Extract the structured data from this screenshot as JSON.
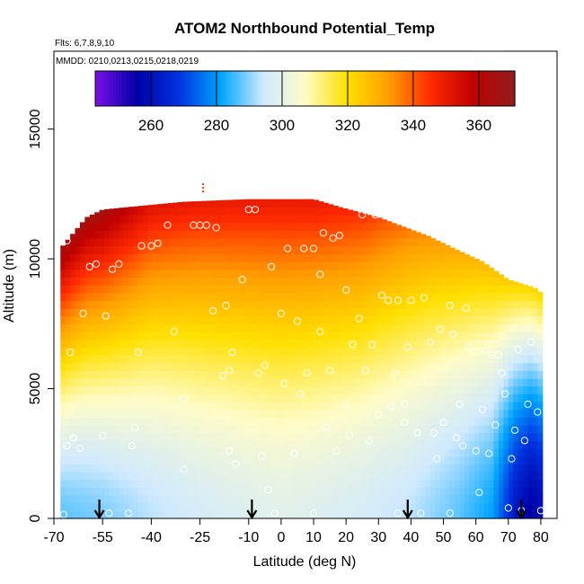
{
  "chart_data": {
    "type": "heatmap",
    "title": "ATOM2 Northbound Potential_Temp",
    "flights_label": "Flts: 6,7,8,9,10",
    "mmdd_label": "MMDD: 0210,0213,0215,0218,0219",
    "xlabel": "Latitude (deg N)",
    "ylabel": "Altitude (m)",
    "xlim": [
      -70,
      85
    ],
    "ylim": [
      0,
      18000
    ],
    "x_ticks": [
      -70,
      -55,
      -40,
      -25,
      -10,
      0,
      10,
      20,
      30,
      40,
      50,
      60,
      70,
      80
    ],
    "y_ticks": [
      0,
      5000,
      10000,
      15000
    ],
    "colorbar": {
      "min": 243,
      "max": 371,
      "ticks": [
        260,
        280,
        300,
        320,
        340,
        360
      ],
      "colors": [
        "#7b10e8",
        "#0000a8",
        "#0033e0",
        "#00a6ff",
        "#cfe9ff",
        "#fffcc8",
        "#ffe000",
        "#ff9d00",
        "#ff2a00",
        "#c00000",
        "#8f1f1f"
      ]
    },
    "field_extent": {
      "lat_range": [
        -68,
        80
      ],
      "top_altitude_by_lat": [
        [
          -68,
          10400
        ],
        [
          -60,
          11600
        ],
        [
          -55,
          11900
        ],
        [
          -30,
          12200
        ],
        [
          -10,
          12300
        ],
        [
          10,
          12300
        ],
        [
          18,
          12000
        ],
        [
          30,
          11600
        ],
        [
          45,
          10900
        ],
        [
          55,
          10300
        ],
        [
          62,
          9900
        ],
        [
          70,
          9200
        ],
        [
          78,
          8900
        ],
        [
          80,
          8700
        ]
      ]
    },
    "profiles": [
      {
        "lat": -68,
        "theta_surface": 287,
        "theta_top": 365
      },
      {
        "lat": -55,
        "theta_surface": 289,
        "theta_top": 365
      },
      {
        "lat": -40,
        "theta_surface": 293,
        "theta_top": 352
      },
      {
        "lat": -25,
        "theta_surface": 296,
        "theta_top": 350
      },
      {
        "lat": -10,
        "theta_surface": 298,
        "theta_top": 350
      },
      {
        "lat": 0,
        "theta_surface": 299,
        "theta_top": 350
      },
      {
        "lat": 10,
        "theta_surface": 298,
        "theta_top": 350
      },
      {
        "lat": 25,
        "theta_surface": 296,
        "theta_top": 345
      },
      {
        "lat": 40,
        "theta_surface": 293,
        "theta_top": 336
      },
      {
        "lat": 55,
        "theta_surface": 287,
        "theta_top": 330
      },
      {
        "lat": 65,
        "theta_surface": 281,
        "theta_top": 326
      },
      {
        "lat": 72,
        "theta_surface": 262,
        "theta_top": 323
      },
      {
        "lat": 77,
        "theta_surface": 255,
        "theta_top": 322
      },
      {
        "lat": 80,
        "theta_surface": 258,
        "theta_top": 322
      }
    ],
    "sample_points": [
      [
        -67,
        150
      ],
      [
        -66,
        2800
      ],
      [
        -64,
        3100
      ],
      [
        -62,
        2700
      ],
      [
        -61,
        7900
      ],
      [
        -59,
        9700
      ],
      [
        -57,
        9800
      ],
      [
        -66,
        10700
      ],
      [
        -65,
        6400
      ],
      [
        -55,
        3200
      ],
      [
        -54,
        7800
      ],
      [
        -53,
        200
      ],
      [
        -52,
        9600
      ],
      [
        -50,
        9800
      ],
      [
        -47,
        200
      ],
      [
        -46,
        2800
      ],
      [
        -45,
        3500
      ],
      [
        -44,
        6400
      ],
      [
        -43,
        10500
      ],
      [
        -40,
        10500
      ],
      [
        -38,
        10600
      ],
      [
        -35,
        11300
      ],
      [
        -33,
        7200
      ],
      [
        -30,
        4600
      ],
      [
        -30,
        1900
      ],
      [
        -27,
        11300
      ],
      [
        -25,
        11300
      ],
      [
        -23,
        11300
      ],
      [
        -21,
        8000
      ],
      [
        -20,
        11200
      ],
      [
        -18,
        5500
      ],
      [
        -17,
        8200
      ],
      [
        -16,
        5700
      ],
      [
        -16,
        2600
      ],
      [
        -15,
        6400
      ],
      [
        -14,
        2100
      ],
      [
        -12,
        9200
      ],
      [
        -10,
        11900
      ],
      [
        -8,
        11900
      ],
      [
        -7,
        5600
      ],
      [
        -6,
        2400
      ],
      [
        -5,
        5900
      ],
      [
        -4,
        1100
      ],
      [
        -3,
        9700
      ],
      [
        -2,
        200
      ],
      [
        0,
        7900
      ],
      [
        1,
        5200
      ],
      [
        2,
        10400
      ],
      [
        4,
        2500
      ],
      [
        5,
        7600
      ],
      [
        6,
        4800
      ],
      [
        7,
        10400
      ],
      [
        8,
        5600
      ],
      [
        10,
        10400
      ],
      [
        10,
        200
      ],
      [
        12,
        7200
      ],
      [
        12,
        9400
      ],
      [
        13,
        11000
      ],
      [
        14,
        3500
      ],
      [
        15,
        5700
      ],
      [
        16,
        10800
      ],
      [
        17,
        2600
      ],
      [
        18,
        10900
      ],
      [
        20,
        4400
      ],
      [
        20,
        8800
      ],
      [
        21,
        3200
      ],
      [
        22,
        6700
      ],
      [
        24,
        7700
      ],
      [
        25,
        11700
      ],
      [
        26,
        5700
      ],
      [
        27,
        3000
      ],
      [
        28,
        6700
      ],
      [
        29,
        11700
      ],
      [
        30,
        4000
      ],
      [
        31,
        8600
      ],
      [
        32,
        11700
      ],
      [
        33,
        8400
      ],
      [
        34,
        4300
      ],
      [
        35,
        5600
      ],
      [
        36,
        200
      ],
      [
        36,
        8400
      ],
      [
        38,
        3700
      ],
      [
        38,
        4400
      ],
      [
        39,
        6600
      ],
      [
        40,
        8400
      ],
      [
        42,
        3300
      ],
      [
        43,
        200
      ],
      [
        44,
        8500
      ],
      [
        46,
        6800
      ],
      [
        47,
        3300
      ],
      [
        48,
        2300
      ],
      [
        49,
        7300
      ],
      [
        50,
        3700
      ],
      [
        52,
        8200
      ],
      [
        52,
        200
      ],
      [
        53,
        7100
      ],
      [
        54,
        3100
      ],
      [
        55,
        4400
      ],
      [
        56,
        2800
      ],
      [
        57,
        8100
      ],
      [
        58,
        6600
      ],
      [
        60,
        2600
      ],
      [
        61,
        1000
      ],
      [
        62,
        4200
      ],
      [
        63,
        6500
      ],
      [
        64,
        2500
      ],
      [
        65,
        6300
      ],
      [
        66,
        3600
      ],
      [
        67,
        6300
      ],
      [
        68,
        5600
      ],
      [
        69,
        4800
      ],
      [
        70,
        400
      ],
      [
        71,
        2300
      ],
      [
        72,
        3400
      ],
      [
        73,
        6500
      ],
      [
        74,
        300
      ],
      [
        75,
        3000
      ],
      [
        76,
        4400
      ],
      [
        77,
        6800
      ],
      [
        79,
        4100
      ],
      [
        80,
        300
      ]
    ],
    "arrows_lat": [
      -56,
      -9,
      39,
      74
    ],
    "max_marker": {
      "lat": -24,
      "altitude": 12700
    }
  }
}
